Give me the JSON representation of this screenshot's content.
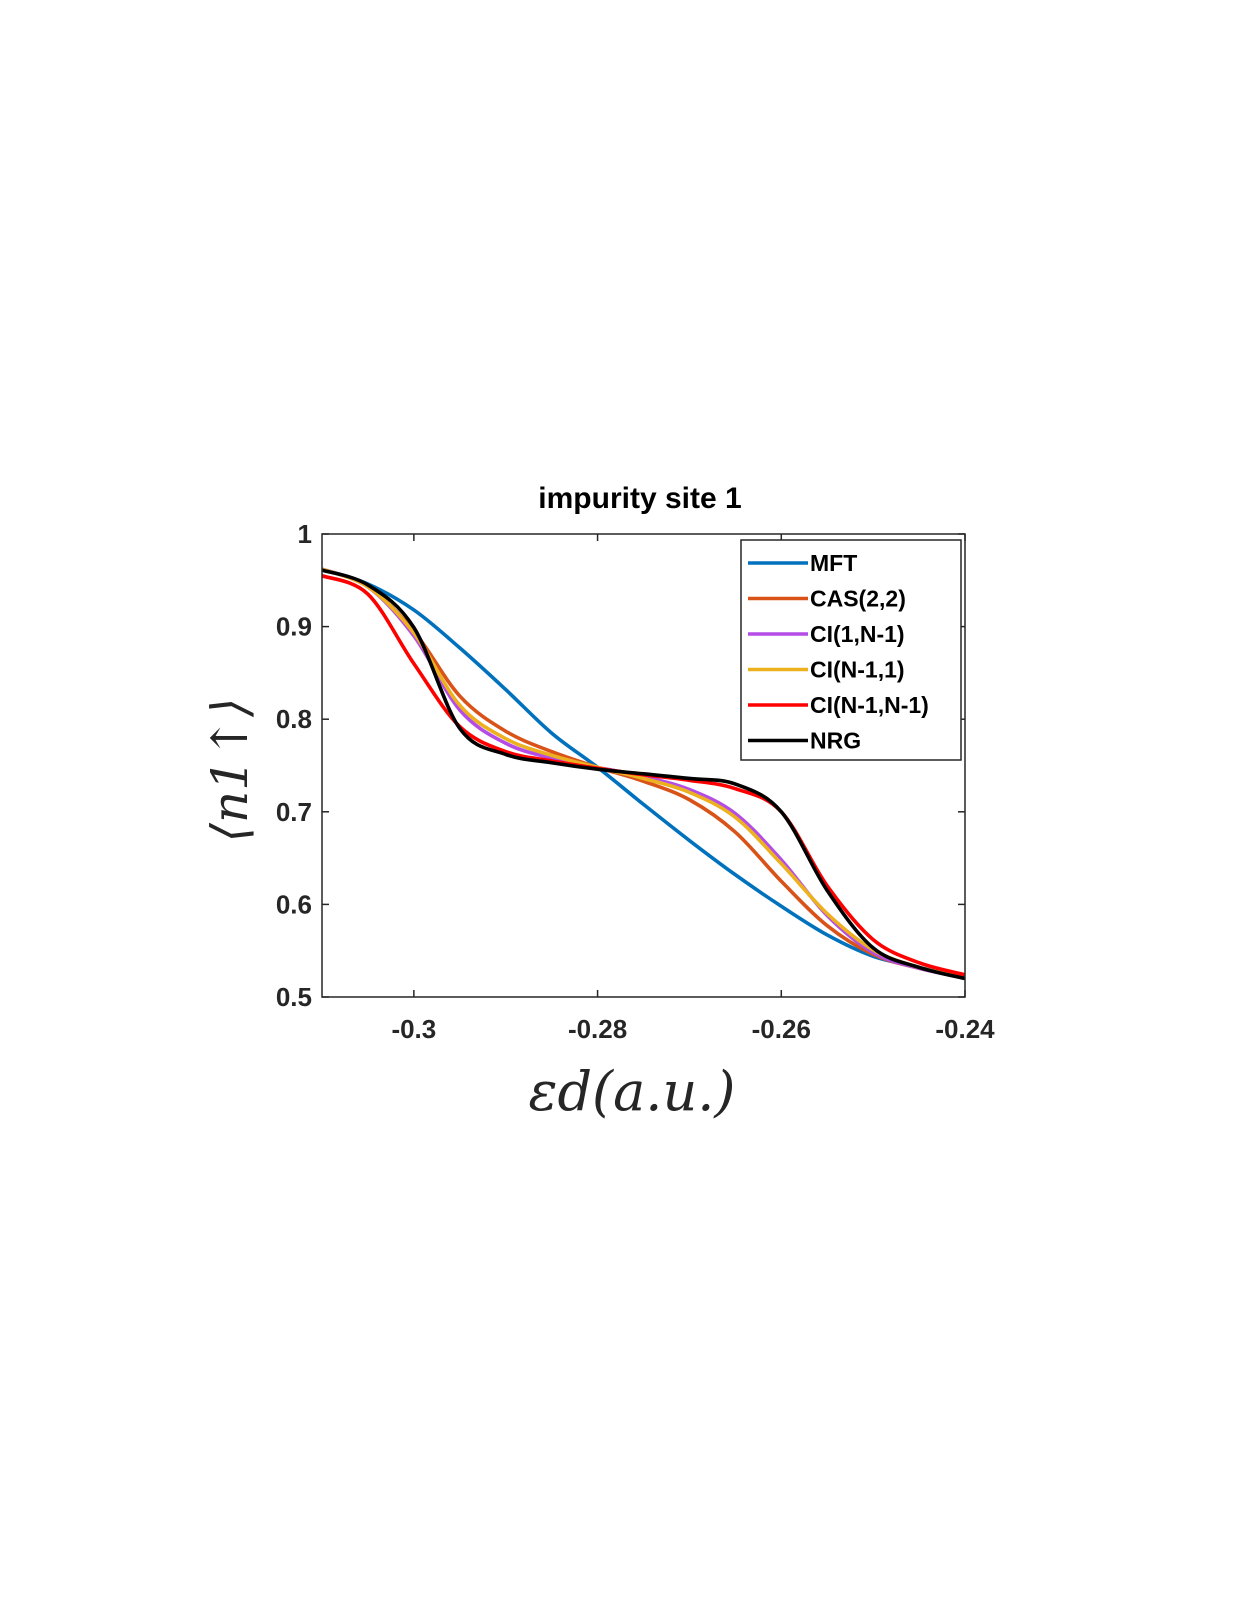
{
  "chart_data": {
    "type": "line",
    "title": "impurity site 1",
    "xlabel": "εd(a.u.)",
    "ylabel": "⟨n1↑⟩",
    "xlim": [
      -0.31,
      -0.24
    ],
    "ylim": [
      0.5,
      1.0
    ],
    "x_ticks": [
      -0.3,
      -0.28,
      -0.26,
      -0.24
    ],
    "x_tick_labels": [
      "-0.3",
      "-0.28",
      "-0.26",
      "-0.24"
    ],
    "y_ticks": [
      0.5,
      0.6,
      0.7,
      0.8,
      0.9,
      1.0
    ],
    "y_tick_labels": [
      "0.5",
      "0.6",
      "0.7",
      "0.8",
      "0.9",
      "1"
    ],
    "grid": false,
    "legend_position": "top-right",
    "series": [
      {
        "name": "MFT",
        "color": "#0072BD",
        "x": [
          -0.31,
          -0.305,
          -0.3,
          -0.295,
          -0.29,
          -0.285,
          -0.28,
          -0.275,
          -0.27,
          -0.265,
          -0.26,
          -0.255,
          -0.25,
          -0.245,
          -0.24
        ],
        "y": [
          0.962,
          0.946,
          0.918,
          0.877,
          0.832,
          0.785,
          0.748,
          0.708,
          0.669,
          0.632,
          0.598,
          0.567,
          0.544,
          0.532,
          0.521
        ]
      },
      {
        "name": "CAS(2,2)",
        "color": "#D95319",
        "x": [
          -0.31,
          -0.305,
          -0.3,
          -0.295,
          -0.29,
          -0.285,
          -0.28,
          -0.275,
          -0.27,
          -0.265,
          -0.26,
          -0.255,
          -0.25,
          -0.245,
          -0.24
        ],
        "y": [
          0.962,
          0.943,
          0.895,
          0.825,
          0.787,
          0.765,
          0.748,
          0.733,
          0.713,
          0.678,
          0.625,
          0.577,
          0.546,
          0.531,
          0.521
        ]
      },
      {
        "name": "CI(1,N-1)",
        "color": "#B44CE6",
        "x": [
          -0.31,
          -0.305,
          -0.3,
          -0.295,
          -0.29,
          -0.285,
          -0.28,
          -0.275,
          -0.27,
          -0.265,
          -0.26,
          -0.255,
          -0.25,
          -0.245,
          -0.24
        ],
        "y": [
          0.962,
          0.943,
          0.89,
          0.81,
          0.774,
          0.758,
          0.748,
          0.738,
          0.724,
          0.698,
          0.648,
          0.588,
          0.548,
          0.531,
          0.521
        ]
      },
      {
        "name": "CI(N-1,1)",
        "color": "#EDB120",
        "x": [
          -0.31,
          -0.305,
          -0.3,
          -0.295,
          -0.29,
          -0.285,
          -0.28,
          -0.275,
          -0.27,
          -0.265,
          -0.26,
          -0.255,
          -0.25,
          -0.245,
          -0.24
        ],
        "y": [
          0.962,
          0.943,
          0.893,
          0.815,
          0.779,
          0.761,
          0.748,
          0.736,
          0.721,
          0.694,
          0.644,
          0.59,
          0.551,
          0.532,
          0.521
        ]
      },
      {
        "name": "CI(N-1,N-1)",
        "color": "#FF0000",
        "x": [
          -0.31,
          -0.305,
          -0.3,
          -0.295,
          -0.29,
          -0.285,
          -0.28,
          -0.275,
          -0.27,
          -0.265,
          -0.26,
          -0.255,
          -0.25,
          -0.245,
          -0.24
        ],
        "y": [
          0.955,
          0.935,
          0.86,
          0.792,
          0.765,
          0.755,
          0.747,
          0.74,
          0.734,
          0.725,
          0.7,
          0.62,
          0.562,
          0.537,
          0.524
        ]
      },
      {
        "name": "NRG",
        "color": "#000000",
        "x": [
          -0.31,
          -0.305,
          -0.3,
          -0.295,
          -0.29,
          -0.285,
          -0.28,
          -0.275,
          -0.27,
          -0.265,
          -0.26,
          -0.255,
          -0.25,
          -0.245,
          -0.24
        ],
        "y": [
          0.961,
          0.945,
          0.899,
          0.79,
          0.762,
          0.753,
          0.746,
          0.741,
          0.736,
          0.73,
          0.7,
          0.615,
          0.553,
          0.532,
          0.52
        ]
      }
    ]
  }
}
